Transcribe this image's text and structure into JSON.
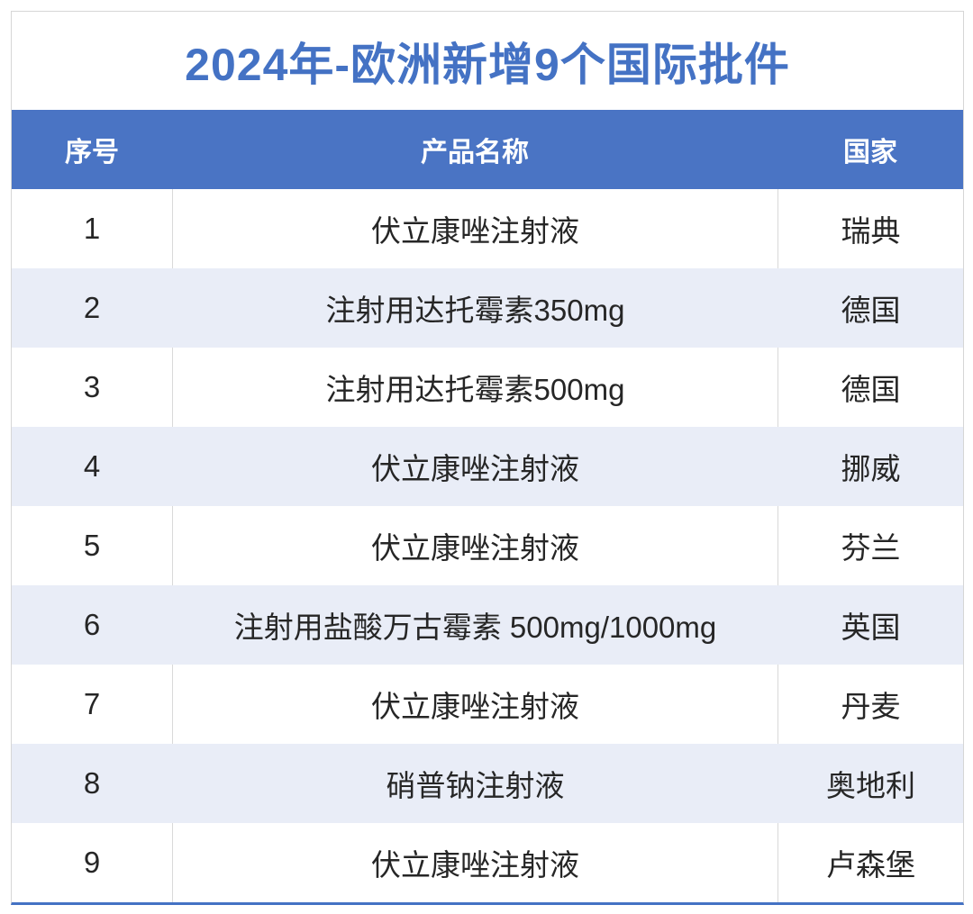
{
  "title": "2024年-欧洲新增9个国际批件",
  "colors": {
    "title_text": "#4472c4",
    "header_bg": "#4a74c4",
    "header_text": "#ffffff",
    "row_alt_bg": "#e9edf7",
    "row_bg": "#ffffff",
    "body_text": "#262626",
    "bottom_rule": "#4472c4",
    "card_border": "#d6d6d6"
  },
  "table": {
    "headers": [
      "序号",
      "产品名称",
      "国家"
    ],
    "rows": [
      {
        "no": "1",
        "product": "伏立康唑注射液",
        "country": "瑞典"
      },
      {
        "no": "2",
        "product": "注射用达托霉素350mg",
        "country": "德国"
      },
      {
        "no": "3",
        "product": "注射用达托霉素500mg",
        "country": "德国"
      },
      {
        "no": "4",
        "product": "伏立康唑注射液",
        "country": "挪威"
      },
      {
        "no": "5",
        "product": "伏立康唑注射液",
        "country": "芬兰"
      },
      {
        "no": "6",
        "product": "注射用盐酸万古霉素 500mg/1000mg",
        "country": "英国"
      },
      {
        "no": "7",
        "product": "伏立康唑注射液",
        "country": "丹麦"
      },
      {
        "no": "8",
        "product": "硝普钠注射液",
        "country": "奥地利"
      },
      {
        "no": "9",
        "product": "伏立康唑注射液",
        "country": "卢森堡"
      }
    ]
  },
  "chart_data": {
    "type": "table",
    "title": "2024年-欧洲新增9个国际批件",
    "columns": [
      "序号",
      "产品名称",
      "国家"
    ],
    "rows": [
      [
        "1",
        "伏立康唑注射液",
        "瑞典"
      ],
      [
        "2",
        "注射用达托霉素350mg",
        "德国"
      ],
      [
        "3",
        "注射用达托霉素500mg",
        "德国"
      ],
      [
        "4",
        "伏立康唑注射液",
        "挪威"
      ],
      [
        "5",
        "伏立康唑注射液",
        "芬兰"
      ],
      [
        "6",
        "注射用盐酸万古霉素 500mg/1000mg",
        "英国"
      ],
      [
        "7",
        "伏立康唑注射液",
        "丹麦"
      ],
      [
        "8",
        "硝普钠注射液",
        "奥地利"
      ],
      [
        "9",
        "伏立康唑注射液",
        "卢森堡"
      ]
    ]
  }
}
